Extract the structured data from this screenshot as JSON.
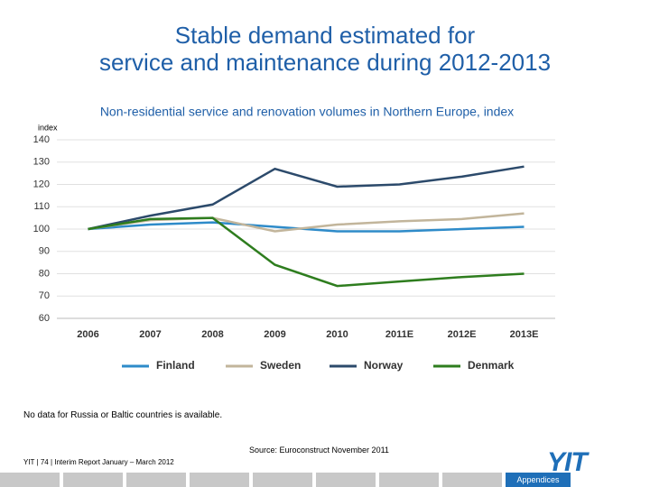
{
  "slide": {
    "title_line1": "Stable demand estimated for",
    "title_line2": "service and maintenance during 2012-2013",
    "note": "No data for Russia or Baltic countries is available.",
    "source": "Source: Euroconstruct November 2011",
    "footer": "YIT  |  74  |  Interim Report January – March 2012",
    "logo": "YIT",
    "active_tab": "Appendices"
  },
  "chart_data": {
    "type": "line",
    "title": "Non-residential service and renovation volumes in Northern Europe, index",
    "y_label": "index",
    "categories": [
      "2006",
      "2007",
      "2008",
      "2009",
      "2010",
      "2011E",
      "2012E",
      "2013E"
    ],
    "series": [
      {
        "name": "Finland",
        "color": "#2e8bc9",
        "values": [
          100,
          102,
          103,
          101,
          99,
          99,
          100,
          101
        ]
      },
      {
        "name": "Sweden",
        "color": "#c2b59b",
        "values": [
          100,
          104,
          105,
          99,
          102,
          103.5,
          104.5,
          107
        ]
      },
      {
        "name": "Norway",
        "color": "#2c4a6b",
        "values": [
          100,
          106,
          111,
          127,
          119,
          120,
          123.5,
          128
        ]
      },
      {
        "name": "Denmark",
        "color": "#2e7d1e",
        "values": [
          100,
          104.5,
          105,
          84,
          74.5,
          76.5,
          78.5,
          80
        ]
      }
    ],
    "ylim": [
      60,
      140
    ],
    "yticks": [
      60,
      70,
      80,
      90,
      100,
      110,
      120,
      130,
      140
    ],
    "grid": true,
    "legend": "bottom"
  }
}
